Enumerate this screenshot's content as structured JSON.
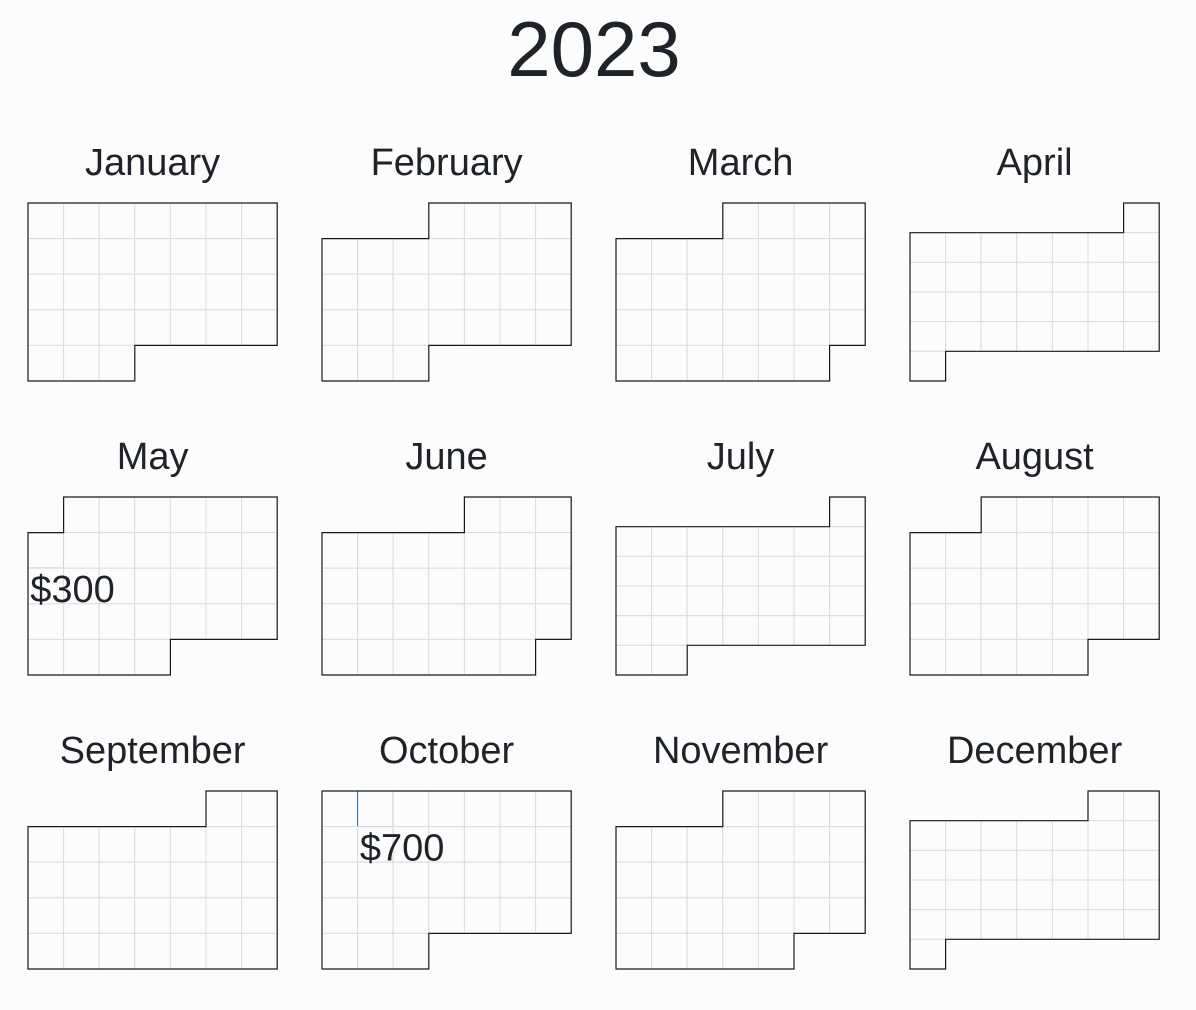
{
  "chart_data": {
    "type": "heatmap",
    "title": "2023",
    "year": 2023,
    "week_start": "Sunday",
    "value_color": "#3a6fa8",
    "empty_color": "#fcfcfc",
    "grid_color": "#dcdcdc",
    "outline_color": "#1a1a1a",
    "months": [
      {
        "name": "January",
        "month": 1
      },
      {
        "name": "February",
        "month": 2
      },
      {
        "name": "March",
        "month": 3
      },
      {
        "name": "April",
        "month": 4
      },
      {
        "name": "May",
        "month": 5
      },
      {
        "name": "June",
        "month": 6
      },
      {
        "name": "July",
        "month": 7
      },
      {
        "name": "August",
        "month": 8
      },
      {
        "name": "September",
        "month": 9
      },
      {
        "name": "October",
        "month": 10
      },
      {
        "name": "November",
        "month": 11
      },
      {
        "name": "December",
        "month": 12
      }
    ],
    "values": [
      {
        "date": "2023-05-07",
        "value": 300,
        "label": "$300"
      },
      {
        "date": "2023-10-02",
        "value": 700,
        "label": "$700"
      }
    ]
  }
}
